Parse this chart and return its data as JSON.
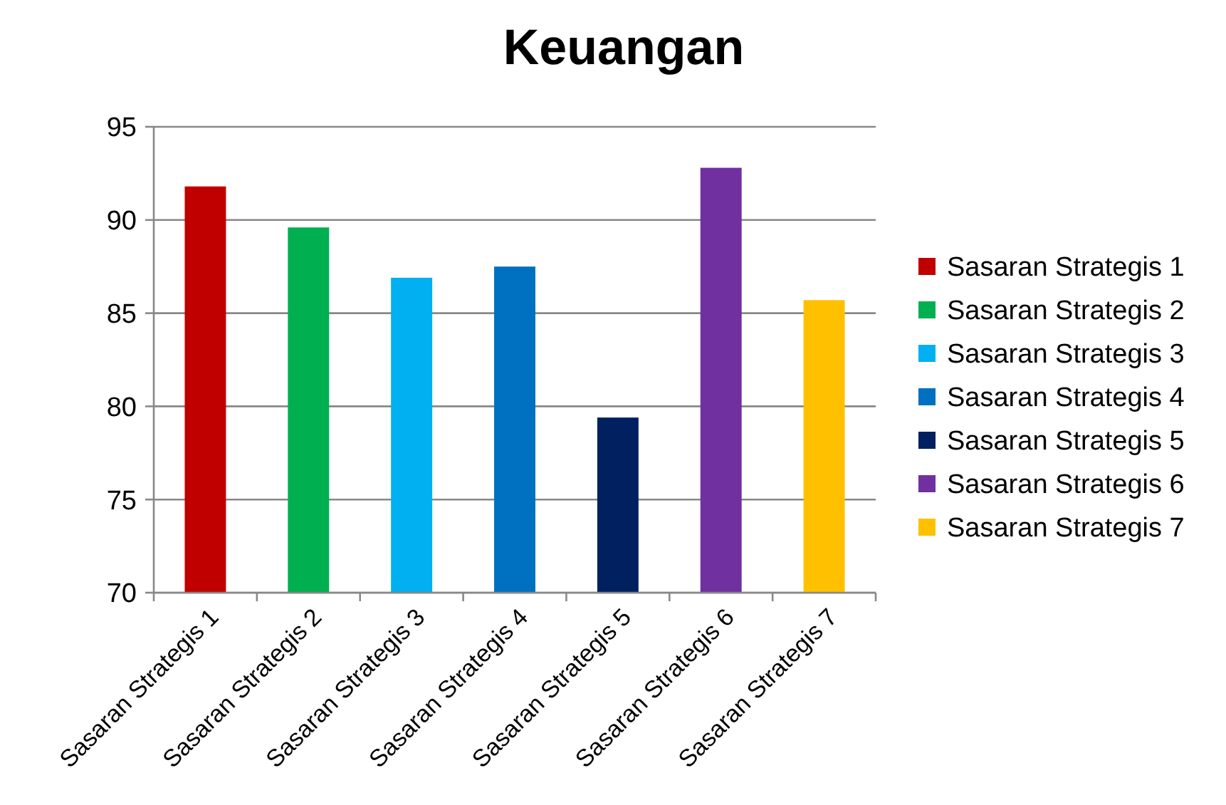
{
  "chart_data": {
    "type": "bar",
    "title": "Keuangan",
    "categories": [
      "Sasaran Strategis 1",
      "Sasaran Strategis 2",
      "Sasaran Strategis 3",
      "Sasaran Strategis 4",
      "Sasaran Strategis 5",
      "Sasaran Strategis 6",
      "Sasaran Strategis 7"
    ],
    "series": [
      {
        "name": "Sasaran Strategis 1",
        "color": "#c00000",
        "values": [
          91.8,
          null,
          null,
          null,
          null,
          null,
          null
        ]
      },
      {
        "name": "Sasaran Strategis 2",
        "color": "#00b050",
        "values": [
          null,
          89.6,
          null,
          null,
          null,
          null,
          null
        ]
      },
      {
        "name": "Sasaran Strategis 3",
        "color": "#00b0f0",
        "values": [
          null,
          null,
          86.9,
          null,
          null,
          null,
          null
        ]
      },
      {
        "name": "Sasaran Strategis 4",
        "color": "#0070c0",
        "values": [
          null,
          null,
          null,
          87.5,
          null,
          null,
          null
        ]
      },
      {
        "name": "Sasaran Strategis 5",
        "color": "#002060",
        "values": [
          null,
          null,
          null,
          null,
          79.4,
          null,
          null
        ]
      },
      {
        "name": "Sasaran Strategis 6",
        "color": "#7030a0",
        "values": [
          null,
          null,
          null,
          null,
          null,
          92.8,
          null
        ]
      },
      {
        "name": "Sasaran Strategis 7",
        "color": "#ffc000",
        "values": [
          null,
          null,
          null,
          null,
          null,
          null,
          85.7
        ]
      }
    ],
    "ylim": [
      70,
      95
    ],
    "yticks": [
      70,
      75,
      80,
      85,
      90,
      95
    ],
    "grid": "y",
    "legend": "right"
  }
}
